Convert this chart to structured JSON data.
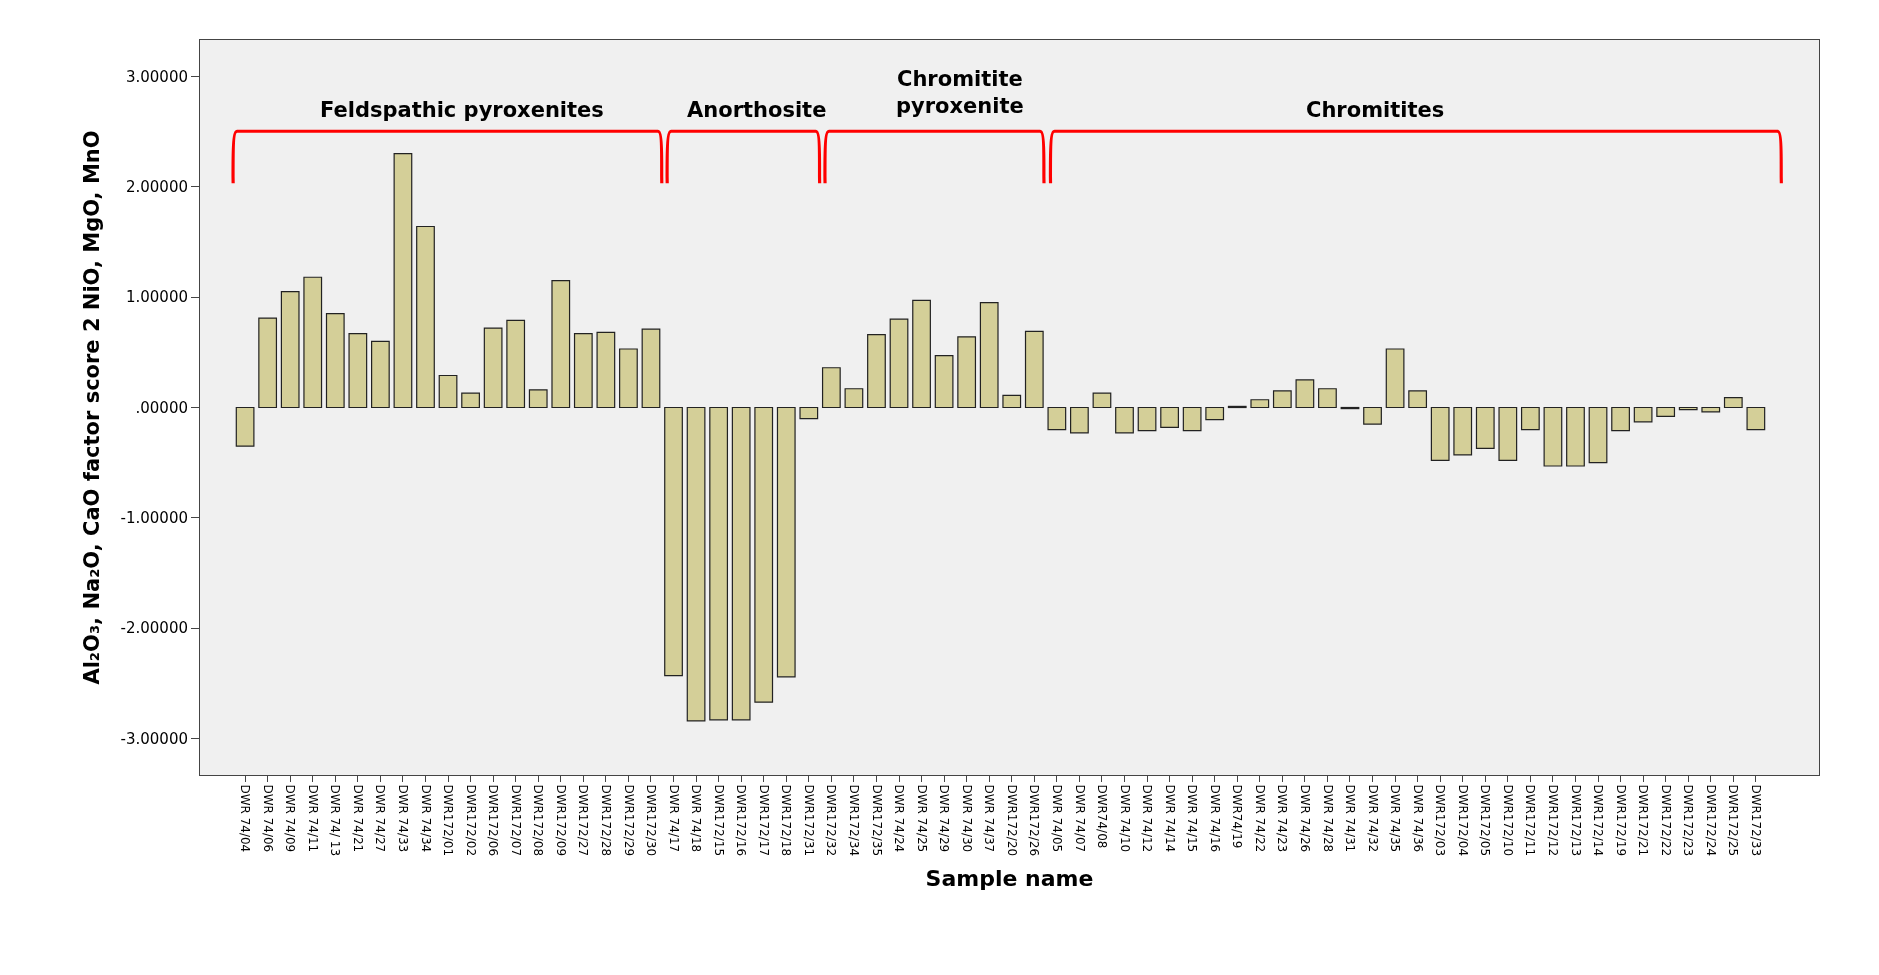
{
  "chart_data": {
    "type": "bar",
    "xlabel": "Sample name",
    "ylabel": "Al₂O₃, Na₂O, CaO factor score 2 NiO, MgO, MnO",
    "categories": [
      "DWR 74/04",
      "DWR 74/06",
      "DWR 74/09",
      "DWR 74/11",
      "DWR 74/ 13",
      "DWR 74/21",
      "DWR 74/27",
      "DWR 74/33",
      "DWR 74/34",
      "DWR172/01",
      "DWR172/02",
      "DWR172/06",
      "DWR172/07",
      "DWR172/08",
      "DWR172/09",
      "DWR172/27",
      "DWR172/28",
      "DWR172/29",
      "DWR172/30",
      "DWR 74/17",
      "DWR 74/18",
      "DWR172/15",
      "DWR172/16",
      "DWR172/17",
      "DWR172/18",
      "DWR172/31",
      "DWR172/32",
      "DWR172/34",
      "DWR172/35",
      "DWR 74/24",
      "DWR 74/25",
      "DWR 74/29",
      "DWR 74/30",
      "DWR 74/37",
      "DWR172/20",
      "DWR172/26",
      "DWR 74/05",
      "DWR 74/07",
      "DWR74/08",
      "DWR 74/10",
      "DWR 74/12",
      "DWR 74/14",
      "DWR 74/15",
      "DWR 74/16",
      "DWR74/19",
      "DWR 74/22",
      "DWR 74/23",
      "DWR 74/26",
      "DWR 74/28",
      "DWR 74/31",
      "DWR 74/32",
      "DWR 74/35",
      "DWR 74/36",
      "DWR172/03",
      "DWR172/04",
      "DWR172/05",
      "DWR172/10",
      "DWR172/11",
      "DWR172/12",
      "DWR172/13",
      "DWR172/14",
      "DWR172/19",
      "DWR172/21",
      "DWR172/22",
      "DWR172/23",
      "DWR172/24",
      "DWR172/25",
      "DWR172/33"
    ],
    "values": [
      -0.35,
      0.81,
      1.05,
      1.18,
      0.85,
      0.67,
      0.6,
      2.3,
      1.64,
      0.29,
      0.13,
      0.72,
      0.79,
      0.16,
      1.15,
      0.67,
      0.68,
      0.53,
      0.71,
      -2.43,
      -2.84,
      -2.83,
      -2.83,
      -2.67,
      -2.44,
      -0.1,
      0.36,
      0.17,
      0.66,
      0.8,
      0.97,
      0.47,
      0.64,
      0.95,
      0.11,
      0.69,
      -0.2,
      -0.23,
      0.13,
      -0.23,
      -0.21,
      -0.18,
      -0.21,
      -0.11,
      0.01,
      0.07,
      0.15,
      0.25,
      0.17,
      -0.01,
      -0.15,
      0.53,
      0.15,
      -0.48,
      -0.43,
      -0.37,
      -0.48,
      -0.2,
      -0.53,
      -0.53,
      -0.5,
      -0.21,
      -0.13,
      -0.08,
      -0.02,
      -0.04,
      0.09,
      -0.2
    ],
    "color": "#d4cf98",
    "ylim": [
      -3.33,
      3.33
    ],
    "yticks": [
      {
        "value": -3,
        "label": "-3.00000"
      },
      {
        "value": -2,
        "label": "-2.00000"
      },
      {
        "value": -1,
        "label": "-1.00000"
      },
      {
        "value": 0,
        "label": ".00000"
      },
      {
        "value": 1,
        "label": "1.00000"
      },
      {
        "value": 2,
        "label": "2.00000"
      },
      {
        "value": 3,
        "label": "3.00000"
      }
    ],
    "annotations": [
      "Feldspathic pyroxenites",
      "Anorthosite",
      "Chromitite\npyroxenite",
      "Chromitites"
    ],
    "grid": false,
    "legend": false
  }
}
